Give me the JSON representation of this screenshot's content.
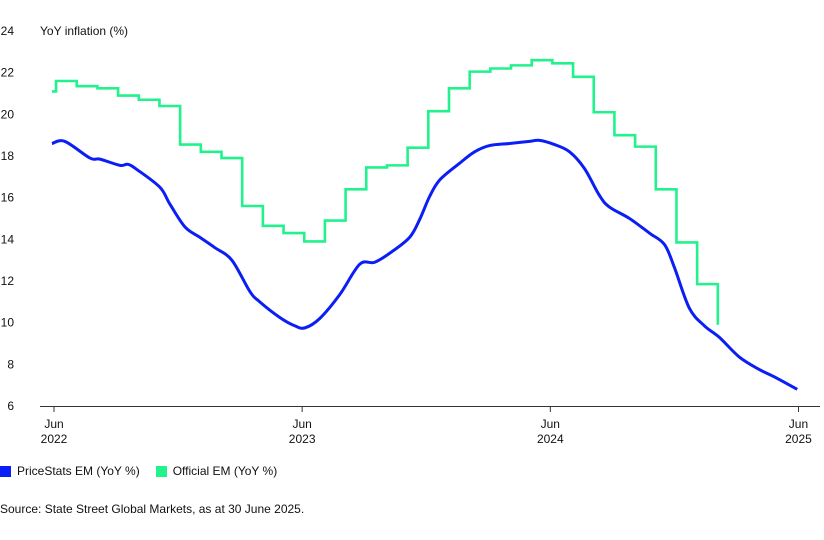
{
  "chart_data": {
    "type": "line",
    "ylabel": "YoY inflation (%)",
    "ylim": [
      6,
      24
    ],
    "yticks": [
      "6",
      "8",
      "10",
      "12",
      "14",
      "16",
      "18",
      "20",
      "22",
      "24"
    ],
    "x_unit": "months since Jun 2022",
    "xlim": [
      -0.7,
      37.3
    ],
    "xticks": [
      {
        "month": 0,
        "line1": "Jun",
        "line2": "2022"
      },
      {
        "month": 12,
        "line1": "Jun",
        "line2": "2023"
      },
      {
        "month": 24,
        "line1": "Jun",
        "line2": "2024"
      },
      {
        "month": 36,
        "line1": "Jun",
        "line2": "2025"
      }
    ],
    "grid": false,
    "legend_position": "bottom-left",
    "series": [
      {
        "name": "PriceStats EM (YoY %)",
        "color": "#0a1ef5",
        "style": "smooth",
        "x": [
          -0.1,
          0.53,
          1.74,
          2.22,
          3.19,
          3.57,
          4.01,
          5.12,
          5.6,
          6.33,
          7.05,
          7.78,
          8.6,
          9.47,
          9.95,
          10.92,
          11.64,
          12.13,
          12.85,
          13.82,
          14.78,
          15.51,
          16.33,
          17.2,
          17.68,
          18.16,
          18.65,
          19.61,
          20.34,
          21.06,
          22.03,
          22.99,
          23.48,
          24.2,
          24.93,
          25.65,
          26.38,
          26.86,
          27.83,
          28.79,
          29.52,
          30.0,
          30.72,
          31.45,
          32.17,
          33.14,
          34.11,
          34.83,
          35.94
        ],
        "values": [
          18.6,
          18.7,
          17.9,
          17.85,
          17.55,
          17.6,
          17.35,
          16.5,
          15.7,
          14.6,
          14.1,
          13.6,
          13.0,
          11.5,
          11.0,
          10.25,
          9.85,
          9.75,
          10.2,
          11.35,
          12.8,
          12.9,
          13.4,
          14.1,
          14.95,
          16.05,
          16.85,
          17.65,
          18.2,
          18.5,
          18.6,
          18.7,
          18.75,
          18.55,
          18.2,
          17.4,
          16.1,
          15.55,
          15.0,
          14.3,
          13.75,
          12.65,
          10.7,
          9.85,
          9.3,
          8.35,
          7.75,
          7.4,
          6.8
        ]
      },
      {
        "name": "Official EM (YoY %)",
        "color": "#22f28c",
        "style": "step",
        "initial": {
          "x": -0.1,
          "value": 21.1
        },
        "step_start": 0.1,
        "values": [
          21.6,
          21.35,
          21.25,
          20.9,
          20.7,
          20.4,
          18.55,
          18.2,
          17.9,
          15.6,
          14.65,
          14.3,
          13.9,
          14.9,
          16.4,
          17.45,
          17.55,
          18.4,
          20.15,
          21.25,
          22.05,
          22.2,
          22.35,
          22.6,
          22.45,
          21.8,
          20.1,
          19.0,
          18.45,
          16.4,
          13.85,
          11.85
        ],
        "final_value": 9.9
      }
    ]
  },
  "source": "Source: State Street Global Markets, as at 30 June 2025."
}
